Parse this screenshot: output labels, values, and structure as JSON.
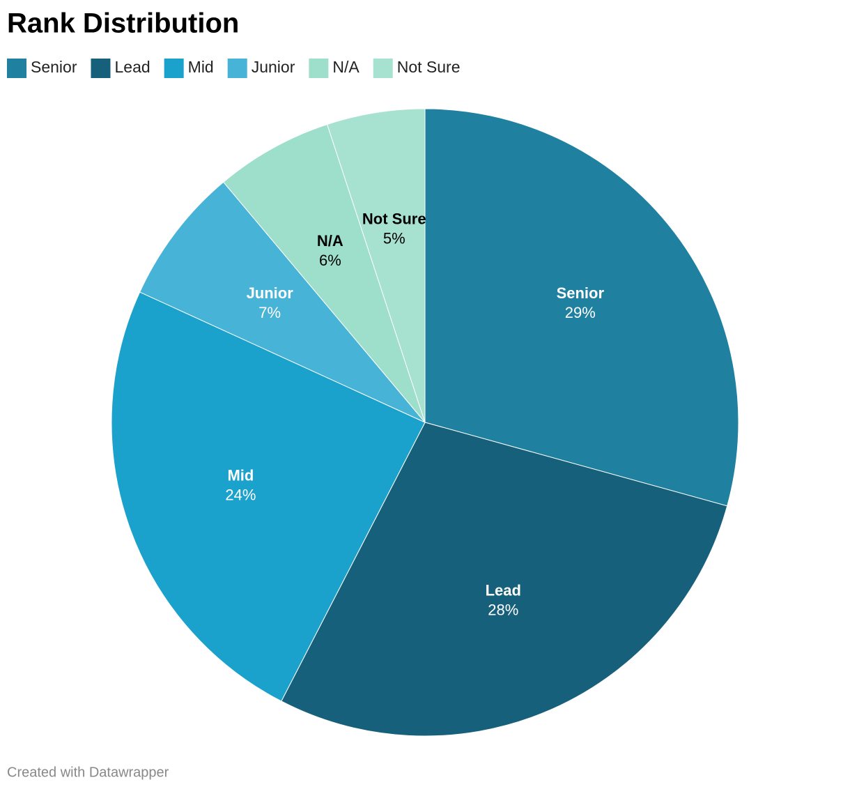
{
  "chart_data": {
    "type": "pie",
    "title": "Rank Distribution",
    "categories": [
      "Senior",
      "Lead",
      "Mid",
      "Junior",
      "N/A",
      "Not Sure"
    ],
    "values": [
      29,
      28,
      24,
      7,
      6,
      5
    ],
    "value_labels": [
      "29%",
      "28%",
      "24%",
      "7%",
      "6%",
      "5%"
    ],
    "colors": [
      "#1f80a0",
      "#17607c",
      "#1aa1cc",
      "#47b3d6",
      "#9ddfca",
      "#a7e2d0"
    ],
    "credit": "Created with Datawrapper"
  }
}
